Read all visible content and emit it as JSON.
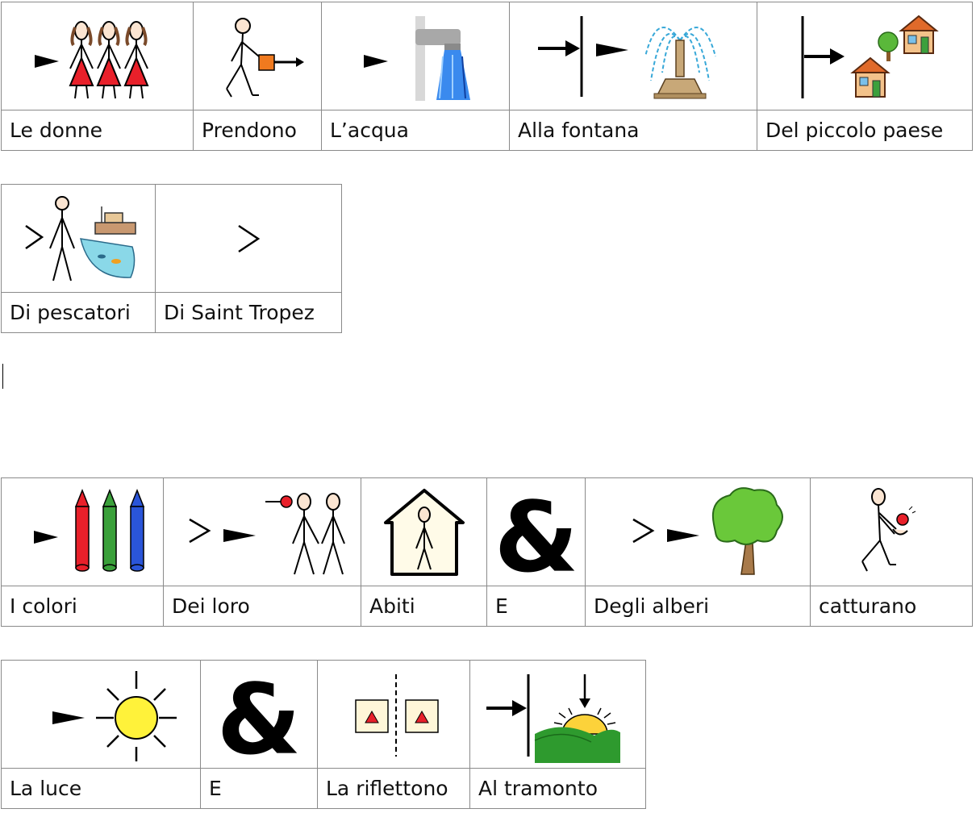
{
  "rows": [
    {
      "cells": [
        {
          "label": "Le donne"
        },
        {
          "label": "Prendono"
        },
        {
          "label": "L’acqua"
        },
        {
          "label": "Alla fontana"
        },
        {
          "label": "Del piccolo paese"
        }
      ]
    },
    {
      "cells": [
        {
          "label": "Di pescatori"
        },
        {
          "label": "Di Saint Tropez"
        }
      ]
    },
    {
      "cells": [
        {
          "label": "I colori"
        },
        {
          "label": "Dei loro"
        },
        {
          "label": "Abiti"
        },
        {
          "label": "E"
        },
        {
          "label": "Degli alberi"
        },
        {
          "label": "catturano"
        }
      ]
    },
    {
      "cells": [
        {
          "label": "La luce"
        },
        {
          "label": "E"
        },
        {
          "label": "La riflettono"
        },
        {
          "label": "Al tramonto"
        }
      ]
    }
  ],
  "symbols": {
    "le_donne": "women-icon",
    "prendono": "take-icon",
    "acqua": "water-tap-icon",
    "fontana": "fountain-icon",
    "paese": "village-icon",
    "pescatori": "fisherman-icon",
    "saint_tropez": "of-marker-icon",
    "colori": "crayons-icon",
    "loro": "their-icon",
    "abiti": "clothes-house-icon",
    "e": "ampersand-icon",
    "alberi": "tree-icon",
    "catturano": "catch-icon",
    "luce": "sun-icon",
    "riflettono": "reflect-icon",
    "tramonto": "sunset-icon"
  },
  "colors": {
    "red": "#e8202a",
    "green": "#3aa03a",
    "blue": "#2a55d8",
    "yellow": "#fff23a",
    "orange": "#f07a1f",
    "grass": "#2e9a2e"
  }
}
